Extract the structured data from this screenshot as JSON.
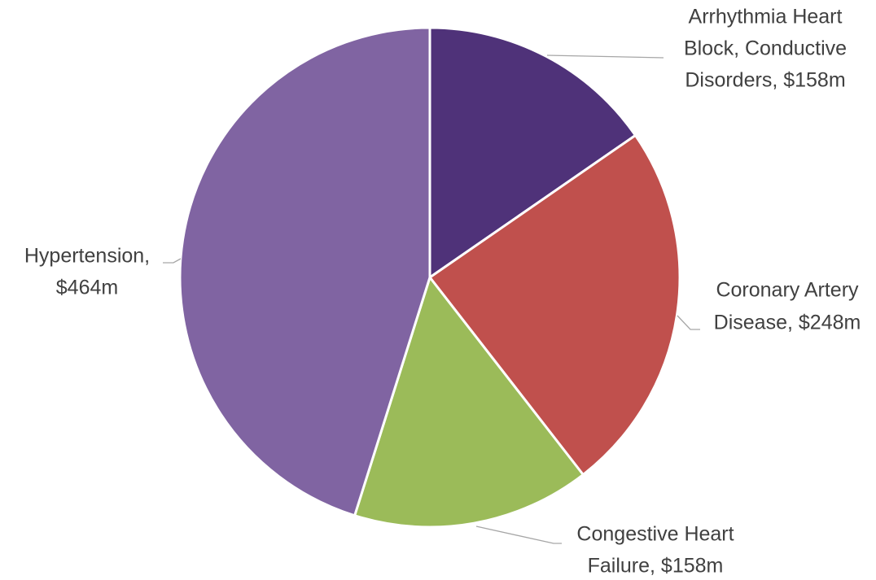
{
  "chart_data": {
    "type": "pie",
    "labels": [
      [
        "Arrhythmia Heart",
        "Block, Conductive",
        "Disorders, $158m"
      ],
      [
        "Coronary Artery",
        "Disease, $248m"
      ],
      [
        "Congestive Heart",
        "Failure, $158m"
      ],
      [
        "Hypertension,",
        "$464m"
      ]
    ],
    "values": [
      158,
      248,
      158,
      464
    ],
    "colors": [
      "#4f3279",
      "#c0504d",
      "#9bbb59",
      "#8064a2"
    ]
  }
}
